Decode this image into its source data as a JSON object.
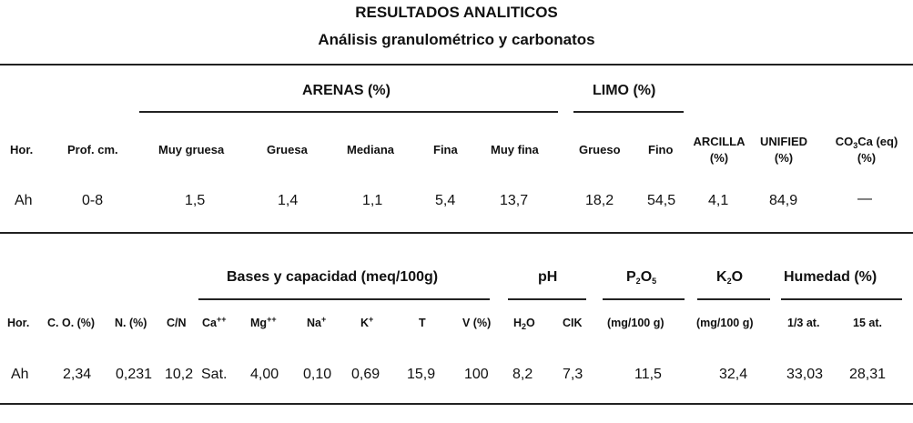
{
  "title": "RESULTADOS ANALITICOS",
  "subtitle": "Análisis granulométrico y carbonatos",
  "table1": {
    "group_arenas": "ARENAS (%)",
    "group_limo": "LIMO (%)",
    "headers": {
      "hor": "Hor.",
      "prof": "Prof. cm.",
      "muy_gruesa": "Muy gruesa",
      "gruesa": "Gruesa",
      "mediana": "Mediana",
      "fina": "Fina",
      "muy_fina": "Muy fina",
      "grueso": "Grueso",
      "fino": "Fino",
      "arcilla": "ARCILLA",
      "arcilla_unit": "(%)",
      "unified": "UNIFIED",
      "unified_unit": "(%)",
      "co3ca_a": "CO",
      "co3ca_sub": "3",
      "co3ca_b": "Ca (eq)",
      "co3ca_unit": "(%)"
    },
    "row": {
      "hor": "Ah",
      "prof": "0-8",
      "muy_gruesa": "1,5",
      "gruesa": "1,4",
      "mediana": "1,1",
      "fina": "5,4",
      "muy_fina": "13,7",
      "grueso": "18,2",
      "fino": "54,5",
      "arcilla": "4,1",
      "unified": "84,9",
      "co3ca": "—"
    }
  },
  "table2": {
    "group_bases": "Bases y capacidad (meq/100g)",
    "group_ph": "pH",
    "group_p2o5_a": "P",
    "group_p2o5_sub1": "2",
    "group_p2o5_b": "O",
    "group_p2o5_sub2": "5",
    "group_k2o_a": "K",
    "group_k2o_sub": "2",
    "group_k2o_b": "O",
    "group_humedad": "Humedad (%)",
    "headers": {
      "hor": "Hor.",
      "co": "C. O. (%)",
      "n": "N. (%)",
      "cn": "C/N",
      "ca": "Ca",
      "ca_sup": "++",
      "mg": "Mg",
      "mg_sup": "++",
      "na": "Na",
      "na_sup": "+",
      "k": "K",
      "k_sup": "+",
      "t": "T",
      "v": "V (%)",
      "h2o_a": "H",
      "h2o_sub": "2",
      "h2o_b": "O",
      "cik": "CIK",
      "p2o5_unit": "(mg/100 g)",
      "k2o_unit": "(mg/100 g)",
      "hum_13": "1/3 at.",
      "hum_15": "15 at."
    },
    "row": {
      "hor": "Ah",
      "co": "2,34",
      "n": "0,231",
      "cn": "10,2",
      "ca": "Sat.",
      "mg": "4,00",
      "na": "0,10",
      "k": "0,69",
      "t": "15,9",
      "v": "100",
      "h2o": "8,2",
      "cik": "7,3",
      "p2o5": "11,5",
      "k2o": "32,4",
      "hum_13": "33,03",
      "hum_15": "28,31"
    }
  }
}
